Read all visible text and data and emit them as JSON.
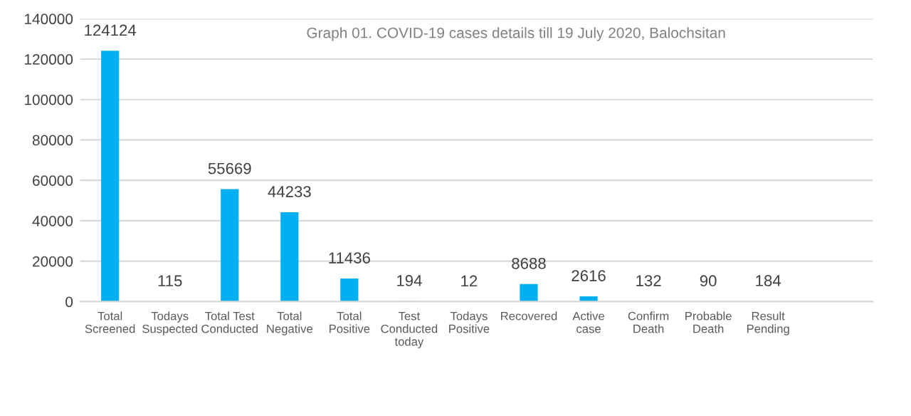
{
  "chart_data": {
    "type": "bar",
    "title": "Graph 01. COVID-19 cases details till 19 July 2020, Balochsitan",
    "categories": [
      "Total Screened",
      "Todays Suspected",
      "Total Test Conducted",
      "Total Negative",
      "Total Positive",
      "Test Conducted today",
      "Todays Positive",
      "Recovered",
      "Active case",
      "Confirm Death",
      "Probable Death",
      "Result Pending"
    ],
    "values": [
      124124,
      115,
      55669,
      44233,
      11436,
      194,
      12,
      8688,
      2616,
      132,
      90,
      184
    ],
    "color": "#00b0f0",
    "ylim": [
      0,
      140000
    ],
    "yticks": [
      0,
      20000,
      40000,
      60000,
      80000,
      100000,
      120000,
      140000
    ],
    "grid": "y",
    "data_labels": true,
    "legend": false
  }
}
